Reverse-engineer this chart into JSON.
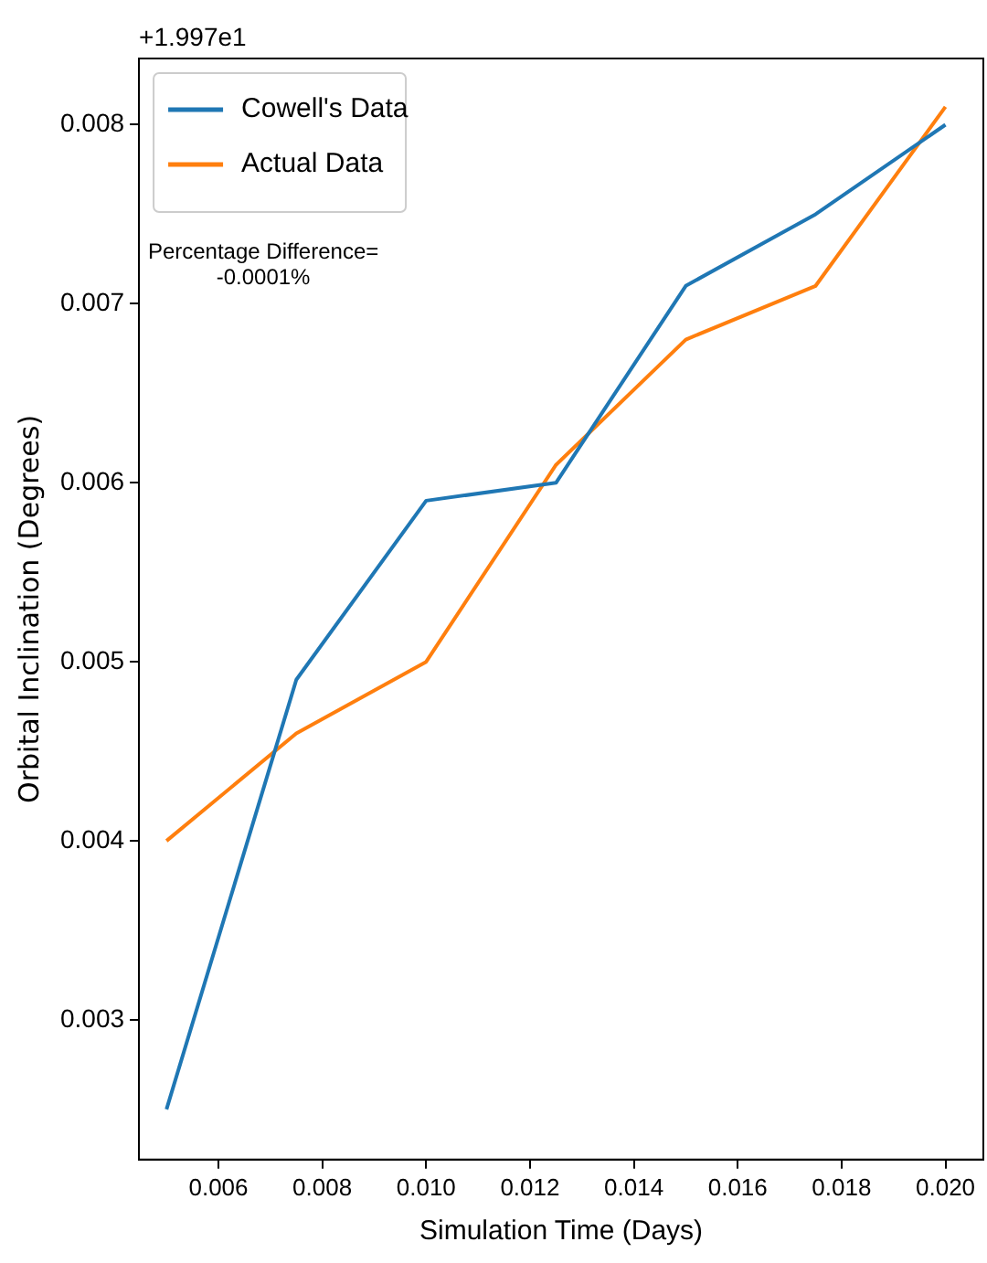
{
  "chart_data": {
    "type": "line",
    "xlabel": "Simulation Time (Days)",
    "ylabel": "Orbital Inclination (Degrees)",
    "x": [
      0.005,
      0.0075,
      0.01,
      0.0125,
      0.015,
      0.0175,
      0.02
    ],
    "series": [
      {
        "name": "Cowell's Data",
        "color": "#1f77b4",
        "values": [
          0.0025,
          0.0049,
          0.0059,
          0.006,
          0.0071,
          0.0075,
          0.008
        ]
      },
      {
        "name": "Actual Data",
        "color": "#ff7f0e",
        "values": [
          0.004,
          0.0046,
          0.005,
          0.0061,
          0.0068,
          0.0071,
          0.0081
        ]
      }
    ],
    "xlim": [
      0.00447,
      0.02073
    ],
    "ylim": [
      0.00222,
      0.00837
    ],
    "xticks": [
      0.006,
      0.008,
      {
        "value": 0.01,
        "label": "0.010"
      },
      0.012,
      0.014,
      0.016,
      0.018,
      {
        "value": 0.02,
        "label": "0.020"
      }
    ],
    "yticks": [
      0.003,
      0.004,
      0.005,
      0.006,
      0.007,
      0.008
    ],
    "annotations": [
      "+1.997e1",
      "Percentage Difference=\n-0.0001%"
    ],
    "legend": "top left",
    "grid": false,
    "marker": "none",
    "line_style": "solid"
  }
}
